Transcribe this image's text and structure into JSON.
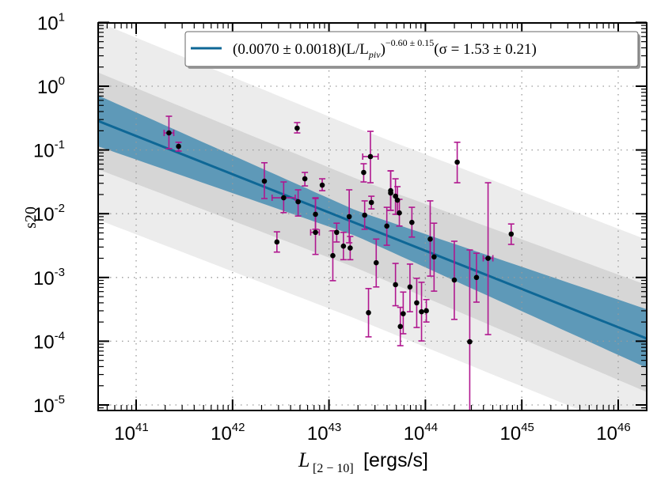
{
  "chart_data": {
    "type": "scatter",
    "title": "",
    "xlabel": {
      "symbol": "L",
      "subscript": "[2 − 10]",
      "unit": "[ergs/s]"
    },
    "ylabel": "s20",
    "xscale": "log",
    "yscale": "log",
    "xlim_log10": [
      40.6,
      46.3
    ],
    "ylim_log10": [
      -5.08,
      1.0
    ],
    "grid": true,
    "x_ticks": [
      {
        "base": "10",
        "exp": "41",
        "log": 41
      },
      {
        "base": "10",
        "exp": "42",
        "log": 42
      },
      {
        "base": "10",
        "exp": "43",
        "log": 43
      },
      {
        "base": "10",
        "exp": "44",
        "log": 44
      },
      {
        "base": "10",
        "exp": "45",
        "log": 45
      },
      {
        "base": "10",
        "exp": "46",
        "log": 46
      }
    ],
    "y_ticks": [
      {
        "base": "10",
        "exp": "1",
        "log": 1
      },
      {
        "base": "10",
        "exp": "0",
        "log": 0
      },
      {
        "base": "10",
        "exp": "-1",
        "log": -1
      },
      {
        "base": "10",
        "exp": "-2",
        "log": -2
      },
      {
        "base": "10",
        "exp": "-3",
        "log": -3
      },
      {
        "base": "10",
        "exp": "-4",
        "log": -4
      },
      {
        "base": "10",
        "exp": "-5",
        "log": -5
      }
    ],
    "legend": {
      "position": "top-right",
      "entries": [
        {
          "label_main": "(0.0070 ± 0.0018)(L/L",
          "label_sub": "piv",
          "label_close": ")",
          "label_sup": "−0.60 ± 0.15",
          "label_tail": "(σ = 1.53 ± 0.21)",
          "color": "#0e6796"
        }
      ]
    },
    "fit": {
      "normalization": 0.007,
      "normalization_err": 0.0018,
      "slope": -0.6,
      "slope_err": 0.15,
      "sigma": 1.53,
      "sigma_err": 0.21,
      "pivot_log10_L": 43.29,
      "line_color": "#0e6796",
      "bands": [
        {
          "name": "fit-uncertainty",
          "color": "#5e99b8",
          "halfwidth_log10_left": 0.4,
          "halfwidth_log10_pivot": 0.2,
          "halfwidth_log10_right": 0.46
        },
        {
          "name": "scatter-1sigma",
          "color": "#d6d6d6",
          "halfwidth_log10_left": 0.76,
          "halfwidth_log10_pivot": 0.7,
          "halfwidth_log10_right": 0.84
        },
        {
          "name": "scatter-2sigma",
          "color": "#ececec",
          "halfwidth_log10_left": 1.55,
          "halfwidth_log10_pivot": 1.5,
          "halfwidth_log10_right": 1.55
        }
      ]
    },
    "point_color": "#000000",
    "errorbar_color": "#b0178f",
    "points": [
      {
        "log10_L": 41.34,
        "s": 0.185,
        "s_lo": 0.105,
        "s_hi": 0.338,
        "xerr_log10": [
          41.29,
          41.39
        ]
      },
      {
        "log10_L": 41.44,
        "s": 0.114,
        "s_lo": 0.096,
        "s_hi": 0.132
      },
      {
        "log10_L": 42.33,
        "s": 0.0324,
        "s_lo": 0.0173,
        "s_hi": 0.063
      },
      {
        "log10_L": 42.53,
        "s": 0.0178,
        "s_lo": 0.0104,
        "s_hi": 0.0315,
        "xerr_log10": [
          42.41,
          42.65
        ]
      },
      {
        "log10_L": 42.68,
        "s": 0.0154,
        "s_lo": 0.0092,
        "s_hi": 0.0237
      },
      {
        "log10_L": 42.67,
        "s": 0.22,
        "s_lo": 0.185,
        "s_hi": 0.269
      },
      {
        "log10_L": 42.75,
        "s": 0.0353,
        "s_lo": 0.0273,
        "s_hi": 0.0444
      },
      {
        "log10_L": 42.46,
        "s": 0.0036,
        "s_lo": 0.0025,
        "s_hi": 0.0052
      },
      {
        "log10_L": 42.86,
        "s": 0.0098,
        "s_lo": 0.0057,
        "s_hi": 0.0173
      },
      {
        "log10_L": 42.86,
        "s": 0.0051,
        "s_lo": 0.0023,
        "s_hi": 0.0178,
        "xerr_log10": [
          42.81,
          42.9
        ]
      },
      {
        "log10_L": 42.93,
        "s": 0.0281,
        "s_lo": 0.023,
        "s_hi": 0.0353
      },
      {
        "log10_L": 43.04,
        "s": 0.0022,
        "s_lo": 0.00089,
        "s_hi": 0.0054
      },
      {
        "log10_L": 43.08,
        "s": 0.0051,
        "s_lo": 0.0036,
        "s_hi": 0.0071
      },
      {
        "log10_L": 43.15,
        "s": 0.0031,
        "s_lo": 0.0019,
        "s_hi": 0.0051
      },
      {
        "log10_L": 43.21,
        "s": 0.009,
        "s_lo": 0.0035,
        "s_hi": 0.0237
      },
      {
        "log10_L": 43.22,
        "s": 0.0029,
        "s_lo": 0.0019,
        "s_hi": 0.0044
      },
      {
        "log10_L": 43.36,
        "s": 0.0444,
        "s_lo": 0.0315,
        "s_hi": 0.0608
      },
      {
        "log10_L": 43.43,
        "s": 0.0787,
        "s_lo": 0.0306,
        "s_hi": 0.196,
        "xerr_log10": [
          43.35,
          43.51
        ]
      },
      {
        "log10_L": 43.44,
        "s": 0.015,
        "s_lo": 0.0119,
        "s_hi": 0.0188
      },
      {
        "log10_L": 43.37,
        "s": 0.0095,
        "s_lo": 0.0057,
        "s_hi": 0.0159
      },
      {
        "log10_L": 43.49,
        "s": 0.0017,
        "s_lo": 0.00071,
        "s_hi": 0.004
      },
      {
        "log10_L": 43.41,
        "s": 0.00028,
        "s_lo": 0.000117,
        "s_hi": 0.00067
      },
      {
        "log10_L": 43.6,
        "s": 0.0064,
        "s_lo": 0.0032,
        "s_hi": 0.0126
      },
      {
        "log10_L": 43.64,
        "s": 0.023,
        "s_lo": 0.0113,
        "s_hi": 0.047
      },
      {
        "log10_L": 43.64,
        "s": 0.0211,
        "s_lo": 0.0113,
        "s_hi": 0.047
      },
      {
        "log10_L": 43.69,
        "s": 0.0188,
        "s_lo": 0.0098,
        "s_hi": 0.0353
      },
      {
        "log10_L": 43.71,
        "s": 0.0163,
        "s_lo": 0.0098,
        "s_hi": 0.0266
      },
      {
        "log10_L": 43.73,
        "s": 0.0103,
        "s_lo": 0.0064,
        "s_hi": 0.0168
      },
      {
        "log10_L": 43.69,
        "s": 0.00077,
        "s_lo": 0.00036,
        "s_hi": 0.00166
      },
      {
        "log10_L": 43.77,
        "s": 0.00027,
        "s_lo": 0.000131,
        "s_hi": 0.00059
      },
      {
        "log10_L": 43.74,
        "s": 0.00017,
        "s_lo": 8.5e-05,
        "s_hi": 0.00034
      },
      {
        "log10_L": 43.84,
        "s": 0.00071,
        "s_lo": 0.00029,
        "s_hi": 0.00162
      },
      {
        "log10_L": 43.86,
        "s": 0.0073,
        "s_lo": 0.0043,
        "s_hi": 0.0126
      },
      {
        "log10_L": 43.91,
        "s": 0.0004,
        "s_lo": 0.000164,
        "s_hi": 0.00097
      },
      {
        "log10_L": 43.96,
        "s": 0.00029,
        "s_lo": 0.000101,
        "s_hi": 0.00084
      },
      {
        "log10_L": 44.01,
        "s": 0.0003,
        "s_lo": 0.0002,
        "s_hi": 0.00045
      },
      {
        "log10_L": 44.05,
        "s": 0.004,
        "s_lo": 0.00105,
        "s_hi": 0.0159
      },
      {
        "log10_L": 44.09,
        "s": 0.0021,
        "s_lo": 0.00061,
        "s_hi": 0.0071
      },
      {
        "log10_L": 44.3,
        "s": 0.00091,
        "s_lo": 0.00022,
        "s_hi": 0.0037
      },
      {
        "log10_L": 44.33,
        "s": 0.0644,
        "s_lo": 0.0306,
        "s_hi": 0.132
      },
      {
        "log10_L": 44.46,
        "s": 9.8e-05,
        "s_lo": 8e-06,
        "s_hi": 0.0027
      },
      {
        "log10_L": 44.53,
        "s": 0.001,
        "s_lo": 0.00041,
        "s_hi": 0.0024
      },
      {
        "log10_L": 44.65,
        "s": 0.002,
        "s_lo": 0.000127,
        "s_hi": 0.0306,
        "xerr_log10": [
          44.6,
          44.7
        ]
      },
      {
        "log10_L": 44.89,
        "s": 0.0048,
        "s_lo": 0.0033,
        "s_hi": 0.0069
      }
    ]
  }
}
